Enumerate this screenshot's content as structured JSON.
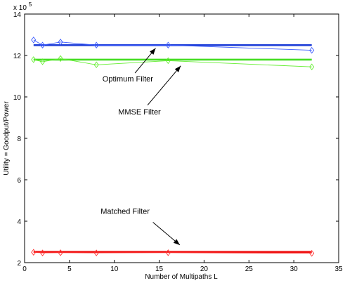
{
  "chart_data": {
    "type": "line",
    "title": "",
    "xlabel": "Number of Multipaths L",
    "ylabel": "Utility = Goodput/Power",
    "y_multiplier_base": "x 10",
    "y_multiplier_exp": "5",
    "xlim": [
      0,
      35
    ],
    "ylim": [
      2,
      14
    ],
    "xticks": [
      0,
      5,
      10,
      15,
      20,
      25,
      30,
      35
    ],
    "yticks": [
      2,
      4,
      6,
      8,
      10,
      12,
      14
    ],
    "grid": false,
    "legend": "none",
    "x": [
      1,
      2,
      4,
      8,
      16,
      32
    ],
    "series": [
      {
        "group": "optimum",
        "style": "thick",
        "color": "#1f3fd8",
        "values": [
          12.5,
          12.5,
          12.5,
          12.5,
          12.5,
          12.5
        ]
      },
      {
        "group": "optimum",
        "style": "thin-diamond",
        "color": "#3b5bff",
        "values": [
          12.75,
          12.5,
          12.65,
          12.5,
          12.5,
          12.25
        ]
      },
      {
        "group": "mmse",
        "style": "thick",
        "color": "#44dd22",
        "values": [
          11.8,
          11.8,
          11.8,
          11.8,
          11.8,
          11.8
        ]
      },
      {
        "group": "mmse",
        "style": "thin-diamond",
        "color": "#66ee33",
        "values": [
          11.8,
          11.7,
          11.85,
          11.55,
          11.75,
          11.45
        ]
      },
      {
        "group": "matched",
        "style": "thick",
        "color": "#ee1111",
        "values": [
          2.52,
          2.52,
          2.52,
          2.52,
          2.52,
          2.52
        ]
      },
      {
        "group": "matched",
        "style": "thin-diamond",
        "color": "#ff3333",
        "values": [
          2.5,
          2.47,
          2.48,
          2.47,
          2.48,
          2.45
        ]
      }
    ],
    "annotations": [
      {
        "text": "Optimum Filter",
        "text_x": 11.5,
        "text_y": 10.75,
        "arrow_from": [
          12.3,
          11.15
        ],
        "arrow_to": [
          14.6,
          12.35
        ]
      },
      {
        "text": "MMSE Filter",
        "text_x": 12.8,
        "text_y": 9.15,
        "arrow_from": [
          13.7,
          9.6
        ],
        "arrow_to": [
          17.4,
          11.5
        ]
      },
      {
        "text": "Matched Filter",
        "text_x": 11.2,
        "text_y": 4.35,
        "arrow_from": [
          14.3,
          3.95
        ],
        "arrow_to": [
          17.3,
          2.85
        ]
      }
    ]
  }
}
